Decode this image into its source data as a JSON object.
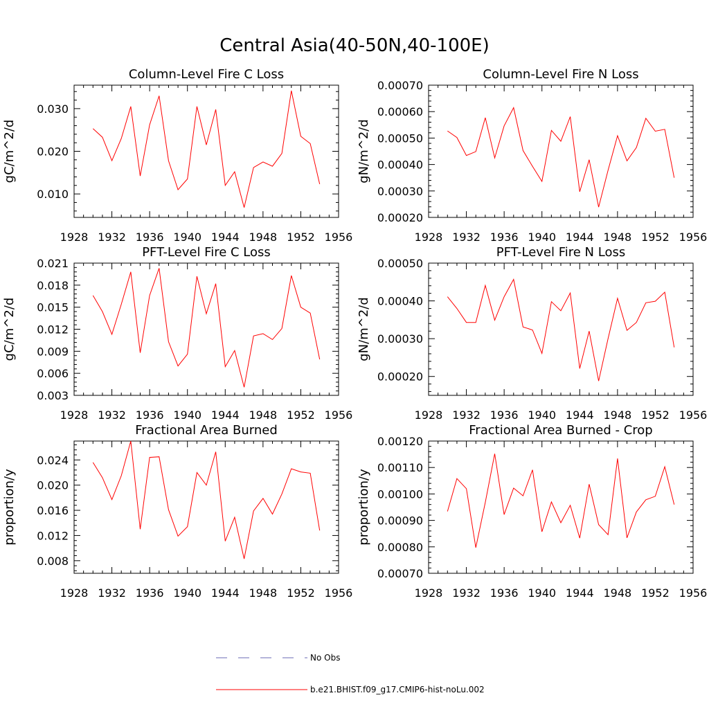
{
  "title": "Central Asia(40-50N,40-100E)",
  "colors": {
    "model": "#ff0000",
    "obs": "#6a6ab4",
    "axis": "#000000"
  },
  "legend": {
    "obs_label": "No Obs",
    "model_label": "b.e21.BHIST.f09_g17.CMIP6-hist-noLu.002"
  },
  "chart_data": [
    {
      "type": "line",
      "title": "Column-Level Fire C Loss",
      "xlabel": "",
      "ylabel": "gC/m^2/d",
      "xlim": [
        1928,
        1956
      ],
      "ylim": [
        0.0045,
        0.0355
      ],
      "xticks": [
        "1928",
        "1932",
        "1936",
        "1940",
        "1944",
        "1948",
        "1952",
        "1956"
      ],
      "yticks": [
        "0.010",
        "0.020",
        "0.030"
      ],
      "x": [
        1930,
        1931,
        1932,
        1933,
        1934,
        1935,
        1936,
        1937,
        1938,
        1939,
        1940,
        1941,
        1942,
        1943,
        1944,
        1945,
        1946,
        1947,
        1948,
        1949,
        1950,
        1951,
        1952,
        1953,
        1954
      ],
      "series": [
        {
          "values": [
            0.0253,
            0.0233,
            0.0178,
            0.023,
            0.0305,
            0.0142,
            0.0262,
            0.033,
            0.0178,
            0.011,
            0.0135,
            0.0305,
            0.0215,
            0.0298,
            0.012,
            0.0152,
            0.0068,
            0.0162,
            0.0175,
            0.0165,
            0.0195,
            0.0342,
            0.0235,
            0.0218,
            0.0123
          ]
        }
      ]
    },
    {
      "type": "line",
      "title": "Column-Level Fire N Loss",
      "xlabel": "",
      "ylabel": "gN/m^2/d",
      "xlim": [
        1928,
        1956
      ],
      "ylim": [
        0.0002,
        0.0007
      ],
      "xticks": [
        "1928",
        "1932",
        "1936",
        "1940",
        "1944",
        "1948",
        "1952",
        "1956"
      ],
      "yticks": [
        "0.00020",
        "0.00030",
        "0.00040",
        "0.00050",
        "0.00060",
        "0.00070"
      ],
      "x": [
        1930,
        1931,
        1932,
        1933,
        1934,
        1935,
        1936,
        1937,
        1938,
        1939,
        1940,
        1941,
        1942,
        1943,
        1944,
        1945,
        1946,
        1947,
        1948,
        1949,
        1950,
        1951,
        1952,
        1953,
        1954
      ],
      "series": [
        {
          "values": [
            0.000527,
            0.000502,
            0.000434,
            0.000449,
            0.000577,
            0.000425,
            0.000546,
            0.000615,
            0.000453,
            0.000393,
            0.000336,
            0.000529,
            0.000488,
            0.000581,
            0.000297,
            0.000418,
            0.000239,
            0.000378,
            0.000509,
            0.000414,
            0.000464,
            0.000575,
            0.000526,
            0.000533,
            0.00035
          ]
        }
      ]
    },
    {
      "type": "line",
      "title": "PFT-Level Fire C Loss",
      "xlabel": "",
      "ylabel": "gC/m^2/d",
      "xlim": [
        1928,
        1956
      ],
      "ylim": [
        0.003,
        0.021
      ],
      "xticks": [
        "1928",
        "1932",
        "1936",
        "1940",
        "1944",
        "1948",
        "1952",
        "1956"
      ],
      "yticks": [
        "0.003",
        "0.006",
        "0.009",
        "0.012",
        "0.015",
        "0.018",
        "0.021"
      ],
      "x": [
        1930,
        1931,
        1932,
        1933,
        1934,
        1935,
        1936,
        1937,
        1938,
        1939,
        1940,
        1941,
        1942,
        1943,
        1944,
        1945,
        1946,
        1947,
        1948,
        1949,
        1950,
        1951,
        1952,
        1953,
        1954
      ],
      "series": [
        {
          "values": [
            0.0166,
            0.0144,
            0.0113,
            0.0154,
            0.0198,
            0.0088,
            0.0166,
            0.0203,
            0.0103,
            0.007,
            0.0086,
            0.0192,
            0.0141,
            0.0182,
            0.0069,
            0.0091,
            0.0041,
            0.0111,
            0.0114,
            0.0106,
            0.0121,
            0.0193,
            0.015,
            0.0142,
            0.0079
          ]
        }
      ]
    },
    {
      "type": "line",
      "title": "PFT-Level Fire N Loss",
      "xlabel": "",
      "ylabel": "gN/m^2/d",
      "xlim": [
        1928,
        1956
      ],
      "ylim": [
        0.00015,
        0.0005
      ],
      "xticks": [
        "1928",
        "1932",
        "1936",
        "1940",
        "1944",
        "1948",
        "1952",
        "1956"
      ],
      "yticks": [
        "0.00020",
        "0.00030",
        "0.00040",
        "0.00050"
      ],
      "x": [
        1930,
        1931,
        1932,
        1933,
        1934,
        1935,
        1936,
        1937,
        1938,
        1939,
        1940,
        1941,
        1942,
        1943,
        1944,
        1945,
        1946,
        1947,
        1948,
        1949,
        1950,
        1951,
        1952,
        1953,
        1954
      ],
      "series": [
        {
          "values": [
            0.000411,
            0.00038,
            0.000343,
            0.000343,
            0.000441,
            0.000349,
            0.000411,
            0.000457,
            0.000331,
            0.000323,
            0.000261,
            0.000398,
            0.000374,
            0.000421,
            0.000221,
            0.00032,
            0.000188,
            0.0003,
            0.000407,
            0.000322,
            0.000343,
            0.000395,
            0.000399,
            0.000423,
            0.000277
          ]
        }
      ]
    },
    {
      "type": "line",
      "title": "Fractional Area Burned",
      "xlabel": "",
      "ylabel": "proportion/y",
      "xlim": [
        1928,
        1956
      ],
      "ylim": [
        0.006,
        0.027
      ],
      "xticks": [
        "1928",
        "1932",
        "1936",
        "1940",
        "1944",
        "1948",
        "1952",
        "1956"
      ],
      "yticks": [
        "0.008",
        "0.012",
        "0.016",
        "0.020",
        "0.024"
      ],
      "x": [
        1930,
        1931,
        1932,
        1933,
        1934,
        1935,
        1936,
        1937,
        1938,
        1939,
        1940,
        1941,
        1942,
        1943,
        1944,
        1945,
        1946,
        1947,
        1948,
        1949,
        1950,
        1951,
        1952,
        1953,
        1954
      ],
      "series": [
        {
          "values": [
            0.0236,
            0.0212,
            0.0177,
            0.0215,
            0.027,
            0.013,
            0.0244,
            0.0245,
            0.0161,
            0.0119,
            0.0134,
            0.022,
            0.02,
            0.0253,
            0.0111,
            0.0149,
            0.0083,
            0.0159,
            0.0179,
            0.0154,
            0.0186,
            0.0226,
            0.0221,
            0.0219,
            0.0128
          ]
        }
      ]
    },
    {
      "type": "line",
      "title": "Fractional Area Burned - Crop",
      "xlabel": "",
      "ylabel": "proportion/y",
      "xlim": [
        1928,
        1956
      ],
      "ylim": [
        0.0007,
        0.0012
      ],
      "xticks": [
        "1928",
        "1932",
        "1936",
        "1940",
        "1944",
        "1948",
        "1952",
        "1956"
      ],
      "yticks": [
        "0.00070",
        "0.00080",
        "0.00090",
        "0.00100",
        "0.00110",
        "0.00120"
      ],
      "x": [
        1930,
        1931,
        1932,
        1933,
        1934,
        1935,
        1936,
        1937,
        1938,
        1939,
        1940,
        1941,
        1942,
        1943,
        1944,
        1945,
        1946,
        1947,
        1948,
        1949,
        1950,
        1951,
        1952,
        1953,
        1954
      ],
      "series": [
        {
          "values": [
            0.000934,
            0.001058,
            0.00102,
            0.000797,
            0.000968,
            0.001152,
            0.000922,
            0.001022,
            0.000993,
            0.001091,
            0.000857,
            0.00097,
            0.000891,
            0.000957,
            0.000833,
            0.001037,
            0.000884,
            0.000846,
            0.001134,
            0.000834,
            0.000932,
            0.000978,
            0.000991,
            0.001103,
            0.00096
          ]
        }
      ]
    }
  ]
}
